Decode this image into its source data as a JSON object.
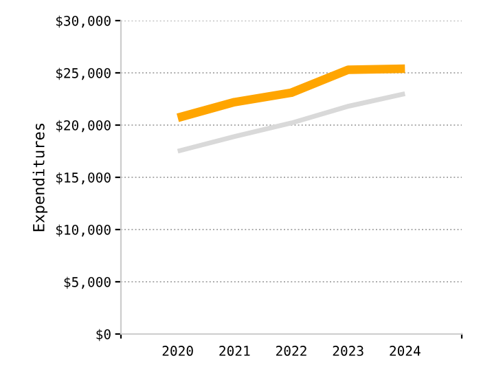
{
  "chart_data": {
    "type": "line",
    "ylabel": "Expenditures",
    "categories": [
      "2020",
      "2021",
      "2022",
      "2023",
      "2024"
    ],
    "series": [
      {
        "color": "#d9d9d9",
        "values": [
          17500,
          18900,
          20200,
          21800,
          23000
        ]
      },
      {
        "color": "#ffa500",
        "values": [
          20700,
          22200,
          23100,
          25300,
          25400
        ]
      }
    ],
    "ylim": [
      0,
      30000
    ],
    "yticks": [
      {
        "value": 0,
        "label": "$0"
      },
      {
        "value": 5000,
        "label": "$5,000"
      },
      {
        "value": 10000,
        "label": "$10,000"
      },
      {
        "value": 15000,
        "label": "$15,000"
      },
      {
        "value": 20000,
        "label": "$20,000"
      },
      {
        "value": 25000,
        "label": "$25,000"
      },
      {
        "value": 30000,
        "label": "$30,000"
      }
    ],
    "grid": "y",
    "marker": "none",
    "line_style": "solid"
  }
}
